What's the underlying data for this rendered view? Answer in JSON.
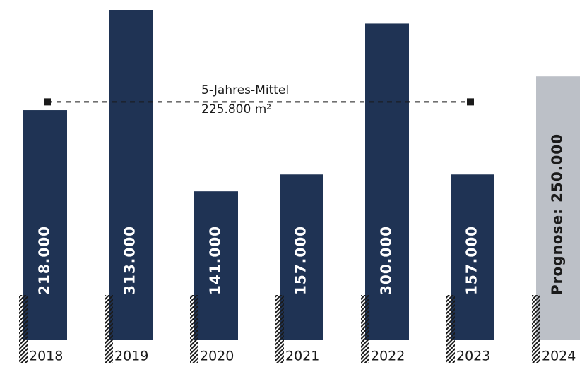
{
  "chart_data": {
    "type": "bar",
    "categories": [
      "2018",
      "2019",
      "2020",
      "2021",
      "2022",
      "2023",
      "2024"
    ],
    "values": [
      218000,
      313000,
      141000,
      157000,
      300000,
      157000,
      250000
    ],
    "value_labels": [
      "218.000",
      "313.000",
      "141.000",
      "157.000",
      "300.000",
      "157.000",
      "Prognose: 250.000"
    ],
    "colors": [
      "#1f3354",
      "#1f3354",
      "#1f3354",
      "#1f3354",
      "#1f3354",
      "#1f3354",
      "#bcc0c7"
    ],
    "label_colors": [
      "#ffffff",
      "#ffffff",
      "#ffffff",
      "#ffffff",
      "#ffffff",
      "#ffffff",
      "#1a1a1a"
    ],
    "ylim": [
      0,
      313000
    ],
    "mean": {
      "value": 225800,
      "label": "5-Jahres-Mittel",
      "value_label": "225.800 m²"
    }
  }
}
